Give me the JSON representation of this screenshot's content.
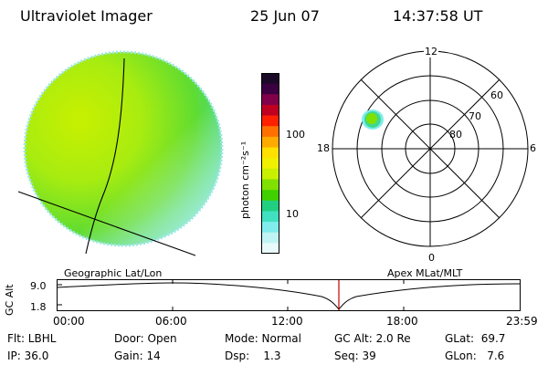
{
  "header": {
    "title": "Ultraviolet Imager",
    "date": "25 Jun 07",
    "time": "14:37:58 UT"
  },
  "colorbar": {
    "unit_label": "photon cm⁻²s⁻¹",
    "ticks": [
      "100",
      "10"
    ],
    "scale": "log",
    "colors": [
      "#1a0a28",
      "#3a0040",
      "#80004a",
      "#c00020",
      "#ff2000",
      "#ff7000",
      "#ffaa00",
      "#ffe000",
      "#f0f000",
      "#c8f000",
      "#80e000",
      "#40d000",
      "#20d080",
      "#40e0c0",
      "#80ecec",
      "#c0f4f4",
      "#e8fafa"
    ]
  },
  "polar_plot": {
    "mlt_labels": {
      "top": "12",
      "left": "18",
      "right": "6",
      "bottom": "0"
    },
    "lat_labels": [
      "60",
      "70",
      "80"
    ]
  },
  "map_labels": {
    "geographic": "Geographic Lat/Lon",
    "apex": "Apex MLat/MLT"
  },
  "timeline": {
    "ylabel": "GC Alt",
    "y_ticks": [
      "9.0",
      "1.8"
    ],
    "x_ticks": [
      "00:00",
      "06:00",
      "12:00",
      "18:00",
      "23:59"
    ],
    "marker_color": "#c00000"
  },
  "info": {
    "row1": [
      "Flt: LBHL",
      "Door: Open",
      "Mode: Normal",
      "GC Alt: 2.0 Re",
      "GLat:  69.7"
    ],
    "row2": [
      "IP: 36.0",
      "Gain: 14",
      "Dsp:    1.3",
      "Seq: 39",
      "GLon:   7.6"
    ]
  }
}
